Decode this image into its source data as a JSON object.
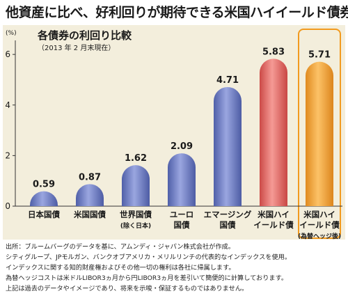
{
  "headline": "他資産に比べ、好利回りが期待できる米国ハイイールド債券",
  "chart_data": {
    "type": "bar",
    "title": "各債券の利回り比較",
    "subtitle": "（2013 年 2 月末現在）",
    "ylabel": "(%)",
    "ylim": [
      0,
      6.5
    ],
    "yticks": [
      0,
      2,
      4,
      6
    ],
    "categories": [
      [
        "日本国債"
      ],
      [
        "米国国債"
      ],
      [
        "世界国債",
        "(除く日本)"
      ],
      [
        "ユーロ",
        "国債"
      ],
      [
        "エマージング",
        "国債"
      ],
      [
        "米国ハイ",
        "イールド債"
      ],
      [
        "米国ハイ",
        "イールド債",
        "(為替ヘッジ後)"
      ]
    ],
    "values": [
      0.59,
      0.87,
      1.62,
      2.09,
      4.71,
      5.83,
      5.71
    ],
    "data_labels": [
      "0.59",
      "0.87",
      "1.62",
      "2.09",
      "4.71",
      "5.83",
      "5.71"
    ],
    "bar_colors": [
      "#6f7fc4",
      "#6f7fc4",
      "#6f7fc4",
      "#6f7fc4",
      "#6f7fc4",
      "#e56a66",
      "#f0a03a"
    ],
    "highlight_index": 6,
    "highlight_border_color": "#f29a1e",
    "grid": false
  },
  "footnotes": [
    "出所：ブルームバーグのデータを基に、アムンディ・ジャパン株式会社が作成。",
    "シティグループ、JPモルガン、バンクオブアメリカ・メリルリンチの代表的なインデックスを使用。",
    "インデックスに関する知的財産権およびその他一切の権利は各社に帰属します。",
    "為替ヘッジコストは米ドルLIBOR3ヵ月から円LIBOR3ヵ月を差引いて簡便的に計算しております。",
    "上記は過去のデータやイメージであり、将来を示唆・保証するものではありません。"
  ]
}
